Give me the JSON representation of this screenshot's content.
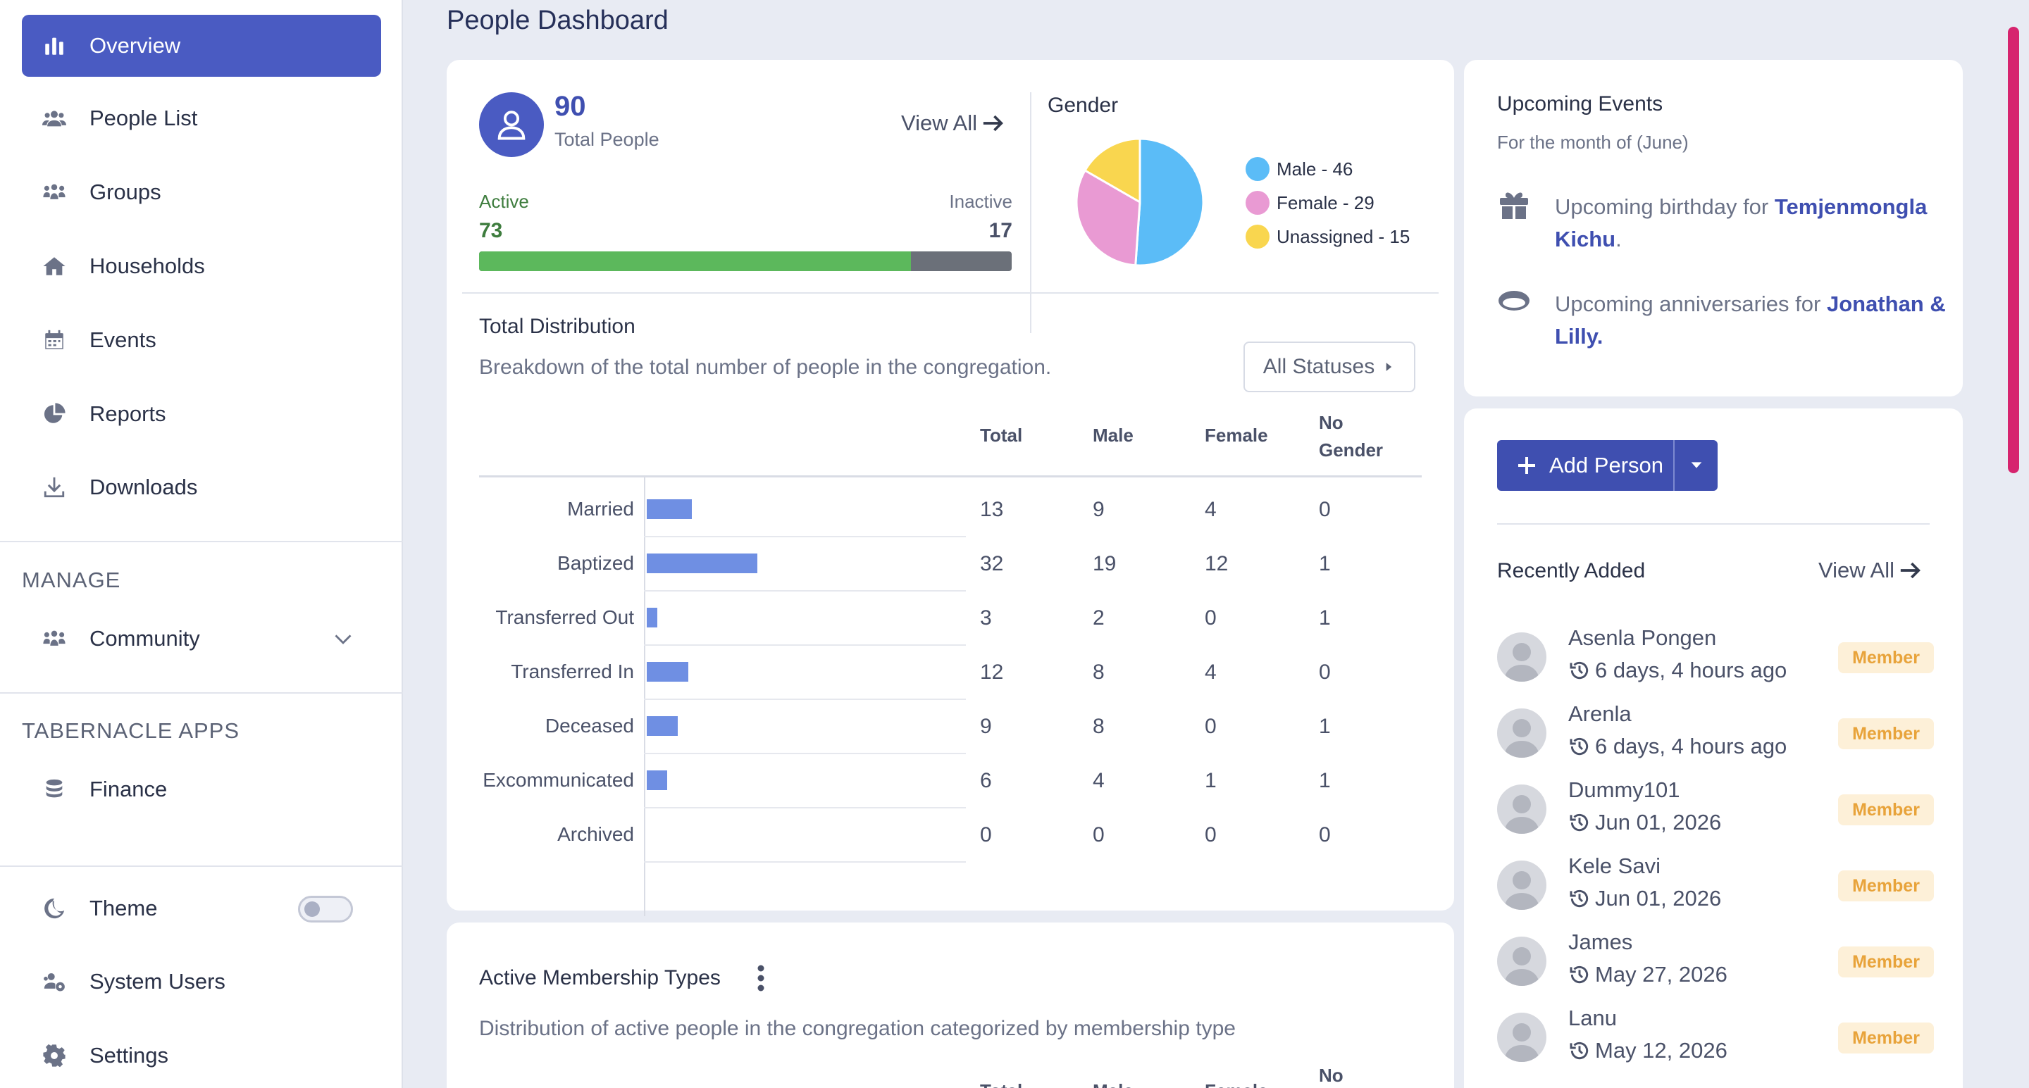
{
  "sidebar": {
    "items": [
      {
        "label": "Overview",
        "icon": "chart-bar-icon"
      },
      {
        "label": "People List",
        "icon": "users-icon"
      },
      {
        "label": "Groups",
        "icon": "groups-icon"
      },
      {
        "label": "Households",
        "icon": "home-icon"
      },
      {
        "label": "Events",
        "icon": "calendar-icon"
      },
      {
        "label": "Reports",
        "icon": "pie-chart-icon"
      },
      {
        "label": "Downloads",
        "icon": "download-icon"
      }
    ],
    "manage_label": "MANAGE",
    "community_label": "Community",
    "apps_label": "TABERNACLE APPS",
    "finance_label": "Finance",
    "theme_label": "Theme",
    "system_users_label": "System Users",
    "settings_label": "Settings"
  },
  "page": {
    "title": "People Dashboard"
  },
  "summary": {
    "total": "90",
    "total_label": "Total People",
    "view_all": "View All",
    "active_label": "Active",
    "inactive_label": "Inactive",
    "active": "73",
    "inactive": "17",
    "active_fraction": 0.811
  },
  "gender": {
    "title": "Gender",
    "legend": [
      {
        "label": "Male - 46",
        "color": "#5bbcf7"
      },
      {
        "label": "Female - 29",
        "color": "#e99ad3"
      },
      {
        "label": "Unassigned - 15",
        "color": "#f9d64f"
      }
    ]
  },
  "chart_data": {
    "type": "pie",
    "categories": [
      "Male",
      "Female",
      "Unassigned"
    ],
    "values": [
      46,
      29,
      15
    ],
    "colors": [
      "#5bbcf7",
      "#e99ad3",
      "#f9d64f"
    ]
  },
  "distribution": {
    "title": "Total Distribution",
    "subtitle": "Breakdown of the total number of people in the congregation.",
    "filter": "All Statuses",
    "headers": [
      "Total",
      "Male",
      "Female",
      "No",
      "Gender"
    ],
    "rows": [
      {
        "label": "Married",
        "total": "13",
        "male": "9",
        "female": "4",
        "none": "0",
        "value": 13
      },
      {
        "label": "Baptized",
        "total": "32",
        "male": "19",
        "female": "12",
        "none": "1",
        "value": 32
      },
      {
        "label": "Transferred Out",
        "total": "3",
        "male": "2",
        "female": "0",
        "none": "1",
        "value": 3
      },
      {
        "label": "Transferred In",
        "total": "12",
        "male": "8",
        "female": "4",
        "none": "0",
        "value": 12
      },
      {
        "label": "Deceased",
        "total": "9",
        "male": "8",
        "female": "0",
        "none": "1",
        "value": 9
      },
      {
        "label": "Excommunicated",
        "total": "6",
        "male": "4",
        "female": "1",
        "none": "1",
        "value": 6
      },
      {
        "label": "Archived",
        "total": "0",
        "male": "0",
        "female": "0",
        "none": "0",
        "value": 0
      }
    ]
  },
  "membership": {
    "title": "Active Membership Types",
    "subtitle": "Distribution of active people in the congregation categorized by membership type",
    "headers": [
      "Total",
      "Male",
      "Female",
      "No"
    ]
  },
  "events": {
    "title": "Upcoming Events",
    "subtitle": "For the month of (June)",
    "birthday_prefix": "Upcoming birthday for",
    "birthday_name_1": "Temjenmongla",
    "birthday_name_2": "Kichu",
    "birthday_suffix": ".",
    "anniv_prefix": "Upcoming anniversaries for",
    "anniv_name_1": "Jonathan",
    "anniv_name_2": "& Lilly."
  },
  "recent": {
    "add_label": "Add Person",
    "title": "Recently Added",
    "view_all": "View All",
    "people": [
      {
        "name": "Asenla Pongen",
        "time": "6 days, 4 hours ago",
        "badge": "Member"
      },
      {
        "name": "Arenla",
        "time": "6 days, 4 hours ago",
        "badge": "Member"
      },
      {
        "name": "Dummy101",
        "time": "Jun 01, 2026",
        "badge": "Member"
      },
      {
        "name": "Kele Savi",
        "time": "Jun 01, 2026",
        "badge": "Member"
      },
      {
        "name": "James",
        "time": "May 27, 2026",
        "badge": "Member"
      },
      {
        "name": "Lanu",
        "time": "May 12, 2026",
        "badge": "Member"
      }
    ]
  }
}
